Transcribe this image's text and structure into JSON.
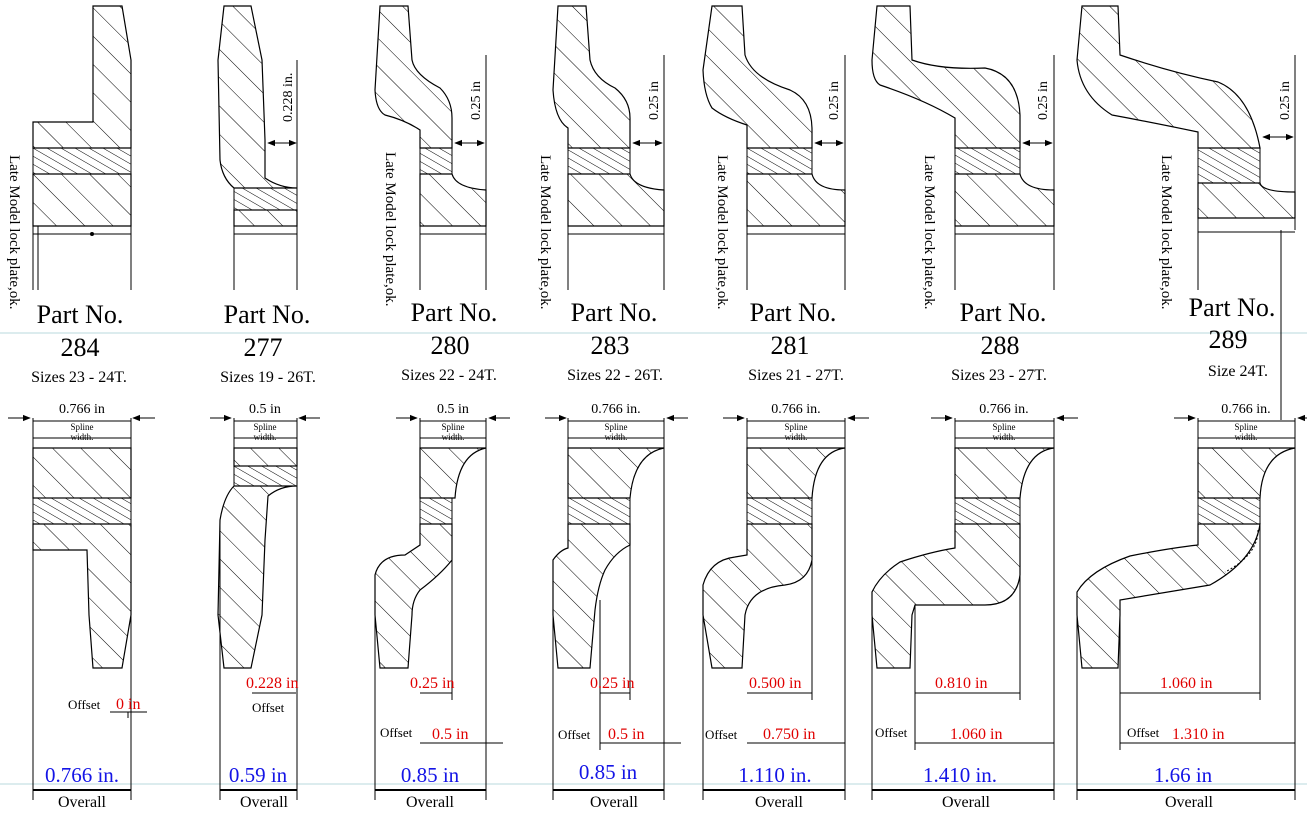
{
  "lock_plate_note": "Late Model lock plate,ok.",
  "spline_label_1": "Spline",
  "spline_label_2": "width.",
  "overall_label": "Overall",
  "offset_label": "Offset",
  "colors": {
    "ink": "#000000",
    "blue": "#1414e6",
    "red": "#e00000"
  },
  "parts": [
    {
      "part_label": "Part No.",
      "part_number": "284",
      "sizes": "Sizes 23 - 24T.",
      "top_dim": "",
      "spline_dim": "0.766 in",
      "red_dim": "",
      "offset_value": "0 in",
      "overall": "0.766 in."
    },
    {
      "part_label": "Part No.",
      "part_number": "277",
      "sizes": "Sizes 19 - 26T.",
      "top_dim": "0.228 in.",
      "spline_dim": "0.5 in",
      "red_dim": "0.228 in",
      "offset_value": "",
      "overall": "0.59 in"
    },
    {
      "part_label": "Part No.",
      "part_number": "280",
      "sizes": "Sizes 22 - 24T.",
      "top_dim": "0.25 in",
      "spline_dim": "0.5 in",
      "red_dim": "0.25 in",
      "offset_value": "0.5 in",
      "overall": "0.85 in"
    },
    {
      "part_label": "Part No.",
      "part_number": "283",
      "sizes": "Sizes 22 - 26T.",
      "top_dim": "0.25 in",
      "spline_dim": "0.766 in.",
      "red_dim": "0.25 in",
      "offset_value": "0.5 in",
      "overall": "0.85 in"
    },
    {
      "part_label": "Part No.",
      "part_number": "281",
      "sizes": "Sizes 21 - 27T.",
      "top_dim": "0.25 in",
      "spline_dim": "0.766 in.",
      "red_dim": "0.500 in",
      "offset_value": "0.750 in",
      "overall": "1.110 in."
    },
    {
      "part_label": "Part No.",
      "part_number": "288",
      "sizes": "Sizes 23 - 27T.",
      "top_dim": "0.25 in",
      "spline_dim": "0.766 in.",
      "red_dim": "0.810 in",
      "offset_value": "1.060 in",
      "overall": "1.410 in."
    },
    {
      "part_label": "Part No.",
      "part_number": "289",
      "sizes": "Size 24T.",
      "top_dim": "0.25 in",
      "spline_dim": "0.766 in.",
      "red_dim": "1.060 in",
      "offset_value": "1.310 in",
      "overall": "1.66 in"
    }
  ]
}
